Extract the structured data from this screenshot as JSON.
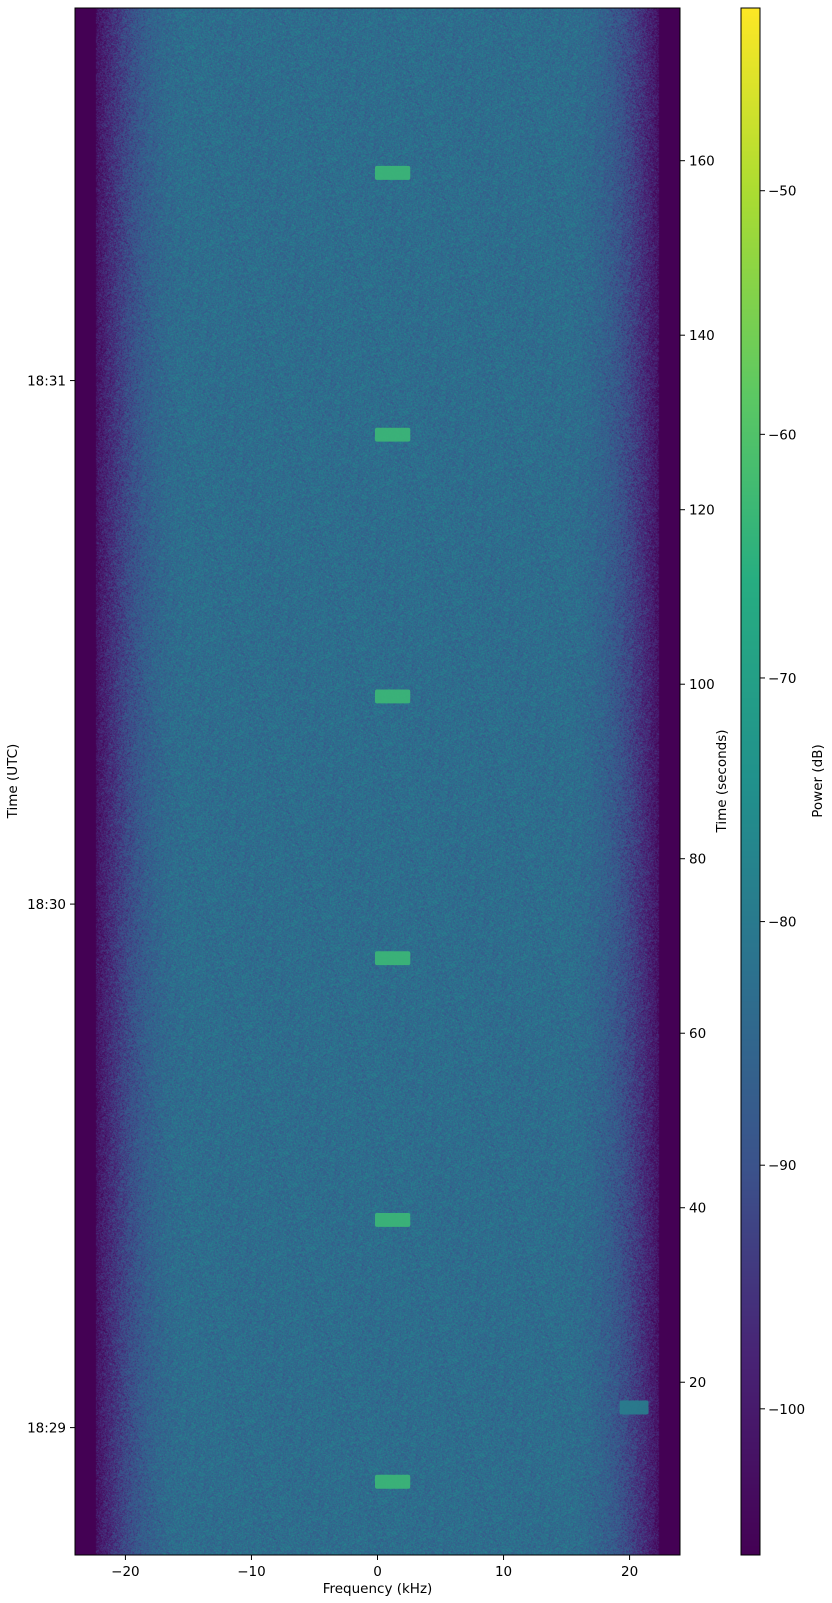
{
  "chart_data": {
    "type": "heatmap",
    "subtype": "spectrogram",
    "title": "",
    "xlabel": "Frequency (kHz)",
    "ylabel_left": "Time (UTC)",
    "ylabel_right": "Time (seconds)",
    "colorbar_label": "Power (dB)",
    "colormap": "viridis",
    "xlim": [
      -24,
      24
    ],
    "ylim_seconds": [
      0.2,
      177.5
    ],
    "clim_db": [
      -106,
      -42.5
    ],
    "grid": false,
    "x_ticks": [
      -20,
      -10,
      0,
      10,
      20
    ],
    "x_tick_labels": [
      "−20",
      "−10",
      "0",
      "10",
      "20"
    ],
    "right_y_ticks": [
      20,
      40,
      60,
      80,
      100,
      120,
      140,
      160
    ],
    "right_y_tick_labels": [
      "20",
      "40",
      "60",
      "80",
      "100",
      "120",
      "140",
      "160"
    ],
    "left_y_ticks_seconds": [
      14.8,
      74.8,
      134.8
    ],
    "left_y_tick_labels": [
      "18:29",
      "18:30",
      "18:31"
    ],
    "colorbar_ticks": [
      -100,
      -90,
      -80,
      -70,
      -60,
      -50
    ],
    "colorbar_tick_labels": [
      "−100",
      "−90",
      "−80",
      "−70",
      "−60",
      "−50"
    ],
    "noise_floor_db": -83,
    "passband_edge_khz": 22,
    "bursts": [
      {
        "time_s": 8.6,
        "duration_s": 1.6,
        "freq_min_khz": -0.2,
        "freq_max_khz": 2.6,
        "power_db": -63
      },
      {
        "time_s": 38.6,
        "duration_s": 1.6,
        "freq_min_khz": -0.2,
        "freq_max_khz": 2.6,
        "power_db": -63
      },
      {
        "time_s": 68.6,
        "duration_s": 1.6,
        "freq_min_khz": -0.2,
        "freq_max_khz": 2.6,
        "power_db": -63
      },
      {
        "time_s": 98.6,
        "duration_s": 1.6,
        "freq_min_khz": -0.2,
        "freq_max_khz": 2.6,
        "power_db": -63
      },
      {
        "time_s": 128.6,
        "duration_s": 1.6,
        "freq_min_khz": -0.2,
        "freq_max_khz": 2.6,
        "power_db": -63
      },
      {
        "time_s": 158.6,
        "duration_s": 1.6,
        "freq_min_khz": -0.2,
        "freq_max_khz": 2.6,
        "power_db": -63
      },
      {
        "time_s": 17.1,
        "duration_s": 1.6,
        "freq_min_khz": 19.2,
        "freq_max_khz": 21.5,
        "power_db": -79
      }
    ]
  }
}
